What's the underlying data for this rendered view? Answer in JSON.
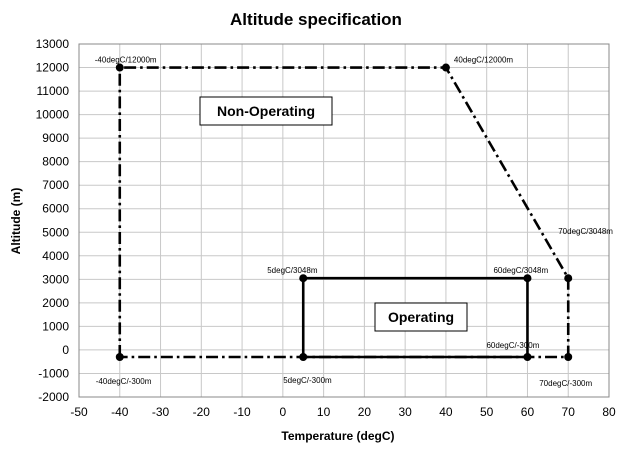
{
  "chart_data": {
    "type": "line",
    "title": "Altitude specification",
    "xlabel": "Temperature (degC)",
    "ylabel": "Altitude (m)",
    "xlim": [
      -50,
      80
    ],
    "ylim": [
      -2000,
      13000
    ],
    "x_ticks": [
      -50,
      -40,
      -30,
      -20,
      -10,
      0,
      10,
      20,
      30,
      40,
      50,
      60,
      70,
      80
    ],
    "y_ticks": [
      -2000,
      -1000,
      0,
      1000,
      2000,
      3000,
      4000,
      5000,
      6000,
      7000,
      8000,
      9000,
      10000,
      11000,
      12000,
      13000
    ],
    "grid": true,
    "series": [
      {
        "name": "Non-Operating",
        "style": "dash-dot",
        "closed": true,
        "points": [
          {
            "x": -40,
            "y": -300,
            "label": "-40degC/-300m"
          },
          {
            "x": -40,
            "y": 12000,
            "label": "-40degC/12000m"
          },
          {
            "x": 40,
            "y": 12000,
            "label": "40degC/12000m"
          },
          {
            "x": 70,
            "y": 3048,
            "label": "70degC/3048m"
          },
          {
            "x": 70,
            "y": -300,
            "label": "70degC/-300m"
          }
        ]
      },
      {
        "name": "Operating",
        "style": "solid",
        "closed": true,
        "points": [
          {
            "x": 5,
            "y": -300,
            "label": "5degC/-300m"
          },
          {
            "x": 5,
            "y": 3048,
            "label": "5degC/3048m"
          },
          {
            "x": 60,
            "y": 3048,
            "label": "60degC/3048m"
          },
          {
            "x": 60,
            "y": -300,
            "label": "60degC/-300m"
          }
        ]
      }
    ]
  }
}
